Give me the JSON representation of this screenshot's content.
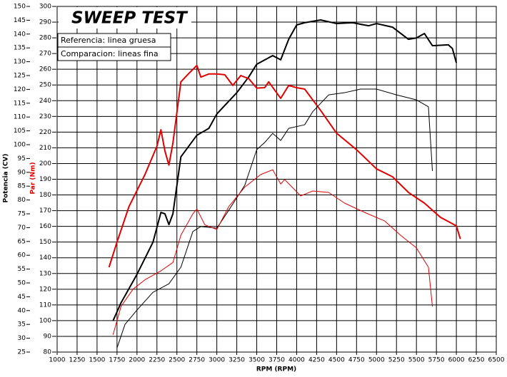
{
  "chart_data": {
    "type": "line",
    "title": "SWEEP TEST",
    "legend": [
      "Referencia: linea gruesa",
      "Comparacion: lineas fina"
    ],
    "xlabel": "RPM (RPM)",
    "ylabel": "Potencia (CV)",
    "y2label": "Par (Nm)",
    "xlim": [
      1000,
      6500
    ],
    "xticks": [
      1000,
      1250,
      1500,
      1750,
      2000,
      2250,
      2500,
      2750,
      3000,
      3250,
      3500,
      3750,
      4000,
      4250,
      4500,
      4750,
      5000,
      5250,
      5500,
      5750,
      6000,
      6250,
      6500
    ],
    "ylim": [
      25,
      150
    ],
    "yticks": [
      25,
      30,
      35,
      40,
      45,
      50,
      55,
      60,
      65,
      70,
      75,
      80,
      85,
      90,
      95,
      100,
      105,
      110,
      115,
      120,
      125,
      130,
      135,
      140,
      145,
      150
    ],
    "y2lim": [
      80,
      300
    ],
    "y2ticks": [
      80,
      90,
      100,
      110,
      120,
      130,
      140,
      150,
      160,
      170,
      180,
      190,
      200,
      210,
      220,
      230,
      240,
      250,
      260,
      270,
      280,
      290,
      300
    ],
    "grid": true,
    "ycolor": "#000000",
    "y2color": "#e00000",
    "series": [
      {
        "color": "#000000",
        "line_width": 2,
        "axis": "y",
        "x": [
          1700,
          1800,
          2000,
          2200,
          2300,
          2350,
          2400,
          2450,
          2550,
          2750,
          2900,
          3000,
          3100,
          3250,
          3400,
          3500,
          3700,
          3800,
          3900,
          4000,
          4100,
          4300,
          4500,
          4700,
          4900,
          5000,
          5200,
          5400,
          5500,
          5600,
          5700,
          5900,
          5950,
          6000
        ],
        "values": [
          36.3,
          42.8,
          53.1,
          64.7,
          75.5,
          75,
          71.1,
          75,
          95.6,
          103.4,
          105.9,
          111.1,
          114.2,
          118.8,
          124.5,
          129.1,
          132.2,
          130.7,
          138.1,
          143.3,
          144.1,
          145.1,
          143.8,
          144.1,
          143,
          143.8,
          142.5,
          138.1,
          138.6,
          140.2,
          135.8,
          136.1,
          134.8,
          129.6
        ]
      },
      {
        "color": "#e00000",
        "line_width": 2,
        "axis": "y2",
        "x": [
          1650,
          1750,
          1900,
          2100,
          2250,
          2300,
          2350,
          2400,
          2450,
          2550,
          2650,
          2750,
          2800,
          2900,
          3000,
          3100,
          3200,
          3300,
          3400,
          3500,
          3600,
          3650,
          3800,
          3900,
          4000,
          4100,
          4300,
          4500,
          4750,
          5000,
          5200,
          5400,
          5600,
          5800,
          6000,
          6050
        ],
        "values": [
          134,
          150,
          172.6,
          193,
          211,
          221.5,
          208,
          199,
          213,
          252,
          257.4,
          262.4,
          255,
          257,
          257,
          256.5,
          249.7,
          256,
          254,
          248,
          248.3,
          252,
          241.5,
          249.7,
          248.3,
          247.4,
          233.8,
          219.3,
          208.8,
          196.6,
          191.6,
          181.6,
          174.8,
          165.8,
          160.3,
          152
        ]
      },
      {
        "color": "#000000",
        "line_width": 1,
        "axis": "y",
        "x": [
          1750,
          1850,
          2000,
          2200,
          2400,
          2550,
          2700,
          2800,
          3000,
          3150,
          3350,
          3500,
          3600,
          3700,
          3800,
          3900,
          4100,
          4200,
          4400,
          4600,
          4800,
          5000,
          5250,
          5500,
          5650,
          5700
        ],
        "values": [
          26.5,
          35,
          40.2,
          46.6,
          49.7,
          55.7,
          68.6,
          70.4,
          69.8,
          76.3,
          85.3,
          98.2,
          100.8,
          104.1,
          101.5,
          105.9,
          107.2,
          111.9,
          118,
          118.8,
          120.1,
          120.1,
          118,
          116.2,
          113.7,
          90.5
        ]
      },
      {
        "color": "#e00000",
        "line_width": 1,
        "axis": "y2",
        "x": [
          1700,
          1800,
          1950,
          2100,
          2300,
          2450,
          2550,
          2700,
          2750,
          2850,
          3000,
          3150,
          3350,
          3550,
          3700,
          3800,
          3850,
          4050,
          4200,
          4400,
          4600,
          4850,
          5100,
          5300,
          5500,
          5650,
          5700
        ],
        "values": [
          91,
          109,
          120,
          126,
          131.7,
          137,
          154.4,
          168,
          171,
          161,
          158,
          172.6,
          185,
          193,
          196,
          187,
          189.8,
          179.4,
          182.5,
          181.6,
          174.8,
          168.9,
          163.5,
          154.4,
          146.3,
          134,
          109
        ]
      }
    ]
  }
}
